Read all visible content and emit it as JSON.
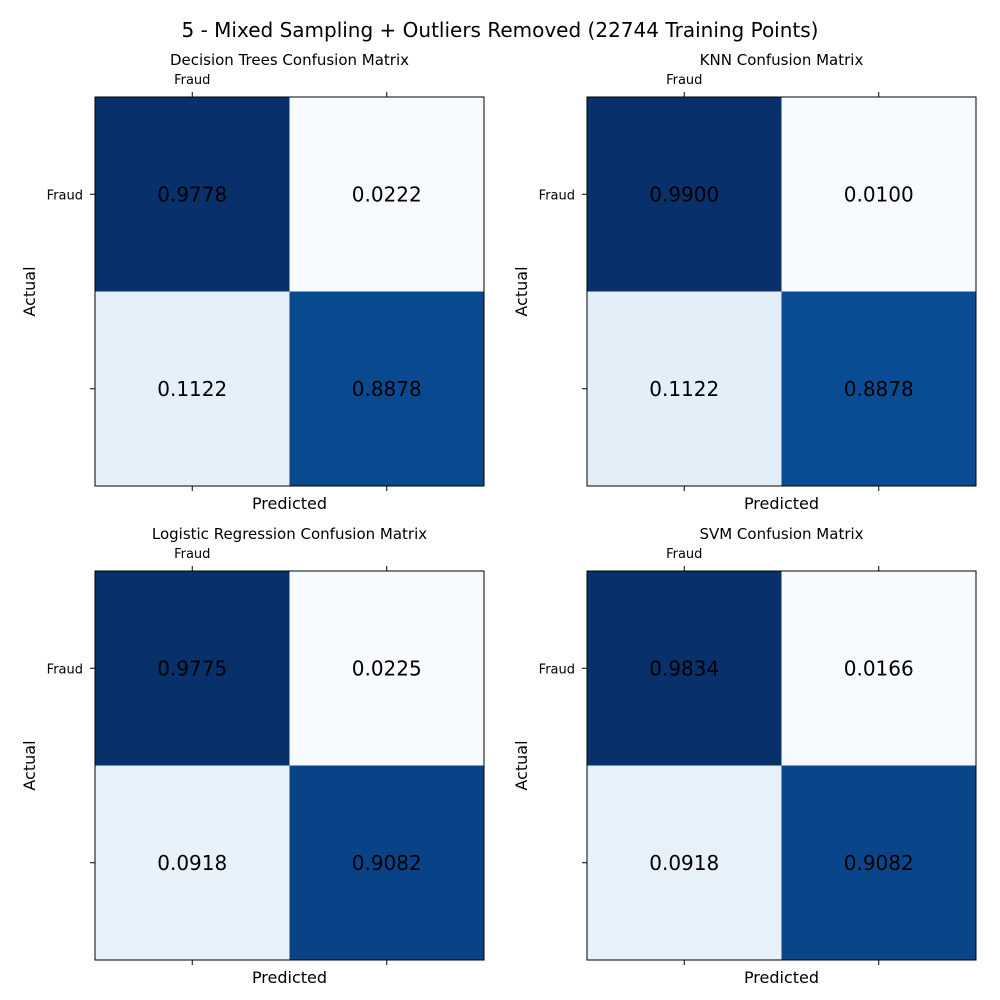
{
  "figure": {
    "suptitle": "5 - Mixed Sampling + Outliers Removed (22744 Training Points)"
  },
  "chart_data": [
    {
      "type": "heatmap",
      "title": "Decision Trees Confusion Matrix",
      "xlabel": "Predicted",
      "ylabel": "Actual",
      "x_tick_labels": [
        "Fraud",
        ""
      ],
      "y_tick_labels": [
        "Fraud",
        ""
      ],
      "matrix": [
        [
          0.9778,
          0.0222
        ],
        [
          0.1122,
          0.8878
        ]
      ],
      "matrix_labels": [
        [
          "0.9778",
          "0.0222"
        ],
        [
          "0.1122",
          "0.8878"
        ]
      ],
      "colormap": "Blues"
    },
    {
      "type": "heatmap",
      "title": "KNN Confusion Matrix",
      "xlabel": "Predicted",
      "ylabel": "Actual",
      "x_tick_labels": [
        "Fraud",
        ""
      ],
      "y_tick_labels": [
        "Fraud",
        ""
      ],
      "matrix": [
        [
          0.99,
          0.01
        ],
        [
          0.1122,
          0.8878
        ]
      ],
      "matrix_labels": [
        [
          "0.9900",
          "0.0100"
        ],
        [
          "0.1122",
          "0.8878"
        ]
      ],
      "colormap": "Blues"
    },
    {
      "type": "heatmap",
      "title": "Logistic Regression Confusion Matrix",
      "xlabel": "Predicted",
      "ylabel": "Actual",
      "x_tick_labels": [
        "Fraud",
        ""
      ],
      "y_tick_labels": [
        "Fraud",
        ""
      ],
      "matrix": [
        [
          0.9775,
          0.0225
        ],
        [
          0.0918,
          0.9082
        ]
      ],
      "matrix_labels": [
        [
          "0.9775",
          "0.0225"
        ],
        [
          "0.0918",
          "0.9082"
        ]
      ],
      "colormap": "Blues"
    },
    {
      "type": "heatmap",
      "title": "SVM Confusion Matrix",
      "xlabel": "Predicted",
      "ylabel": "Actual",
      "x_tick_labels": [
        "Fraud",
        ""
      ],
      "y_tick_labels": [
        "Fraud",
        ""
      ],
      "matrix": [
        [
          0.9834,
          0.0166
        ],
        [
          0.0918,
          0.9082
        ]
      ],
      "matrix_labels": [
        [
          "0.9834",
          "0.0166"
        ],
        [
          "0.0918",
          "0.9082"
        ]
      ],
      "colormap": "Blues"
    }
  ]
}
